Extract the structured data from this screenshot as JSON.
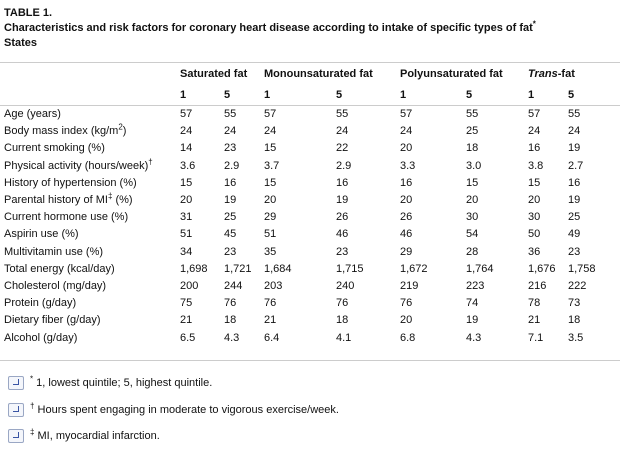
{
  "header": {
    "label": "TABLE 1.",
    "caption": "Characteristics and risk factors for coronary heart disease according to intake of specific types of fat",
    "caption_marker": "*",
    "caption_end": "States"
  },
  "table": {
    "groups": [
      {
        "name": "Saturated fat",
        "columns": [
          "1",
          "5"
        ]
      },
      {
        "name": "Monounsaturated fat",
        "columns": [
          "1",
          "5"
        ]
      },
      {
        "name": "Polyunsaturated fat",
        "columns": [
          "1",
          "5"
        ]
      },
      {
        "name_italic": "Trans",
        "name": "-fat",
        "columns": [
          "1",
          "5"
        ]
      }
    ],
    "rows": [
      {
        "label": "Age (years)",
        "values": [
          "57",
          "55",
          "57",
          "55",
          "57",
          "55",
          "57",
          "55"
        ]
      },
      {
        "label": "Body mass index (kg/m",
        "sup": "2",
        "label_end": ")",
        "values": [
          "24",
          "24",
          "24",
          "24",
          "24",
          "25",
          "24",
          "24"
        ]
      },
      {
        "label": "Current smoking (%)",
        "values": [
          "14",
          "23",
          "15",
          "22",
          "20",
          "18",
          "16",
          "19"
        ]
      },
      {
        "label": "Physical activity (hours/week)",
        "sup": "†",
        "values": [
          "3.6",
          "2.9",
          "3.7",
          "2.9",
          "3.3",
          "3.0",
          "3.8",
          "2.7"
        ]
      },
      {
        "label": "History of hypertension (%)",
        "values": [
          "15",
          "16",
          "15",
          "16",
          "16",
          "15",
          "15",
          "16"
        ]
      },
      {
        "label": "Parental history of MI",
        "sup": "‡",
        "label_end": " (%)",
        "values": [
          "20",
          "19",
          "20",
          "19",
          "20",
          "20",
          "20",
          "19"
        ]
      },
      {
        "label": "Current hormone use (%)",
        "values": [
          "31",
          "25",
          "29",
          "26",
          "26",
          "30",
          "30",
          "25"
        ]
      },
      {
        "label": "Aspirin use (%)",
        "values": [
          "51",
          "45",
          "51",
          "46",
          "46",
          "54",
          "50",
          "49"
        ]
      },
      {
        "label": "Multivitamin use (%)",
        "values": [
          "34",
          "23",
          "35",
          "23",
          "29",
          "28",
          "36",
          "23"
        ]
      },
      {
        "label": "Total energy (kcal/day)",
        "values": [
          "1,698",
          "1,721",
          "1,684",
          "1,715",
          "1,672",
          "1,764",
          "1,676",
          "1,758"
        ]
      },
      {
        "label": "Cholesterol (mg/day)",
        "values": [
          "200",
          "244",
          "203",
          "240",
          "219",
          "223",
          "216",
          "222"
        ]
      },
      {
        "label": "Protein (g/day)",
        "values": [
          "75",
          "76",
          "76",
          "76",
          "76",
          "74",
          "78",
          "73"
        ]
      },
      {
        "label": "Dietary fiber (g/day)",
        "values": [
          "21",
          "18",
          "21",
          "18",
          "20",
          "19",
          "21",
          "18"
        ]
      },
      {
        "label": "Alcohol (g/day)",
        "values": [
          "6.5",
          "4.3",
          "6.4",
          "4.1",
          "6.8",
          "4.3",
          "7.1",
          "3.5"
        ]
      }
    ]
  },
  "footnotes": [
    {
      "marker": "*",
      "text": " 1, lowest quintile; 5, highest quintile."
    },
    {
      "marker": "†",
      "text": " Hours spent engaging in moderate to vigorous exercise/week."
    },
    {
      "marker": "‡",
      "text": " MI, myocardial infarction."
    }
  ]
}
